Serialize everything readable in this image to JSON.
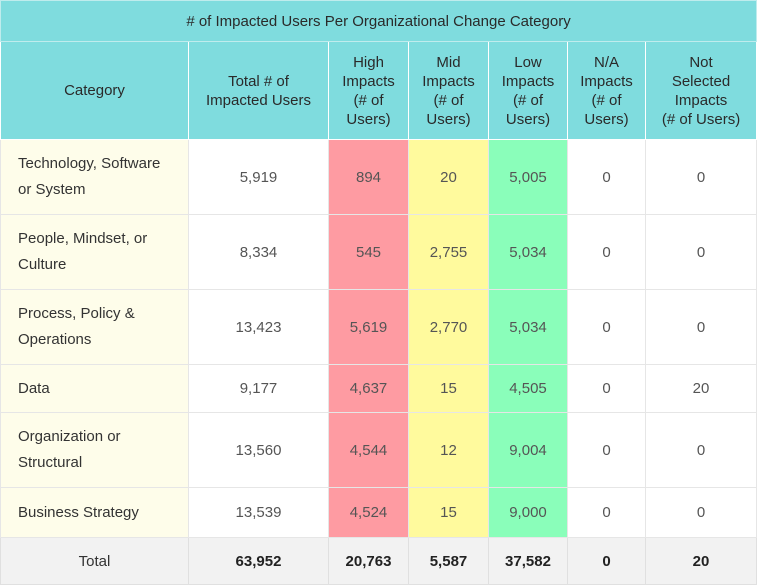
{
  "table": {
    "title": "# of Impacted Users Per Organizational Change Category",
    "headers": [
      {
        "lines": [
          "Category"
        ]
      },
      {
        "lines": [
          "Total # of",
          "Impacted Users"
        ]
      },
      {
        "lines": [
          "High",
          "Impacts",
          "(# of",
          "Users)"
        ]
      },
      {
        "lines": [
          "Mid",
          "Impacts",
          "(# of",
          "Users)"
        ]
      },
      {
        "lines": [
          "Low",
          "Impacts",
          "(# of",
          "Users)"
        ]
      },
      {
        "lines": [
          "N/A",
          "Impacts",
          "(# of",
          "Users)"
        ]
      },
      {
        "lines": [
          "Not",
          "Selected",
          "Impacts",
          "(# of Users)"
        ]
      }
    ],
    "rows": [
      {
        "category_lines": [
          "Technology, Software",
          "or System"
        ],
        "total": "5,919",
        "high": "894",
        "mid": "20",
        "low": "5,005",
        "na": "0",
        "not_selected": "0"
      },
      {
        "category_lines": [
          "People, Mindset, or",
          "Culture"
        ],
        "total": "8,334",
        "high": "545",
        "mid": "2,755",
        "low": "5,034",
        "na": "0",
        "not_selected": "0"
      },
      {
        "category_lines": [
          "Process, Policy &",
          "Operations"
        ],
        "total": "13,423",
        "high": "5,619",
        "mid": "2,770",
        "low": "5,034",
        "na": "0",
        "not_selected": "0"
      },
      {
        "category_lines": [
          "Data"
        ],
        "total": "9,177",
        "high": "4,637",
        "mid": "15",
        "low": "4,505",
        "na": "0",
        "not_selected": "20"
      },
      {
        "category_lines": [
          "Organization or",
          "Structural"
        ],
        "total": "13,560",
        "high": "4,544",
        "mid": "12",
        "low": "9,004",
        "na": "0",
        "not_selected": "0"
      },
      {
        "category_lines": [
          "Business Strategy"
        ],
        "total": "13,539",
        "high": "4,524",
        "mid": "15",
        "low": "9,000",
        "na": "0",
        "not_selected": "0"
      }
    ],
    "totals": {
      "label": "Total",
      "total": "63,952",
      "high": "20,763",
      "mid": "5,587",
      "low": "37,582",
      "na": "0",
      "not_selected": "20"
    }
  },
  "colors": {
    "header_bg": "#7fdcde",
    "category_bg": "#fefdea",
    "high_bg": "#fe9ba2",
    "mid_bg": "#fffa9d",
    "low_bg": "#8afeba",
    "total_bg": "#f2f2f2"
  }
}
